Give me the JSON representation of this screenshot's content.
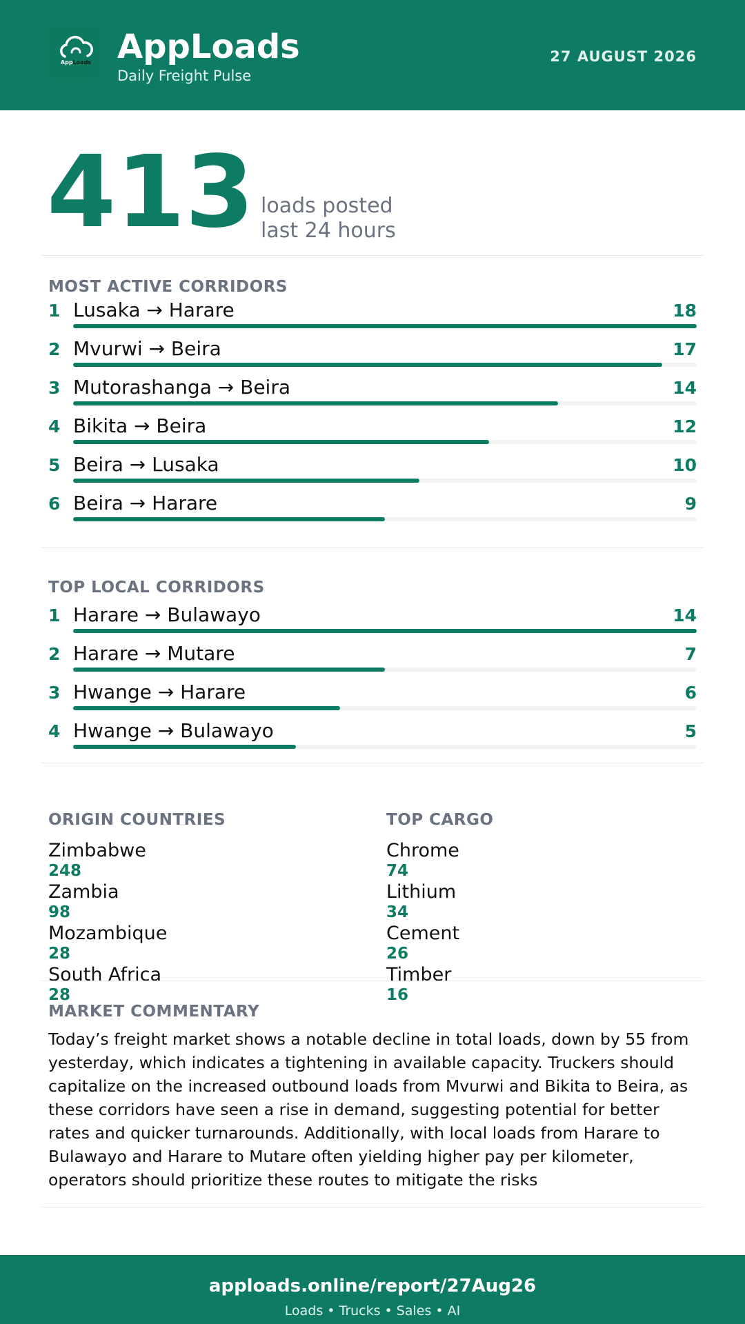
{
  "header": {
    "logo_text_a": "App",
    "logo_text_b": "Loads",
    "title": "AppLoads",
    "subtitle": "Daily Freight Pulse",
    "date": "27 AUGUST 2026"
  },
  "hero": {
    "value": "413",
    "line1": "loads posted",
    "line2": "last 24 hours"
  },
  "active_corridors": {
    "title": "MOST ACTIVE CORRIDORS",
    "items": [
      {
        "rank": "1",
        "name": "Lusaka → Harare",
        "count": 18
      },
      {
        "rank": "2",
        "name": "Mvurwi → Beira",
        "count": 17
      },
      {
        "rank": "3",
        "name": "Mutorashanga → Beira",
        "count": 14
      },
      {
        "rank": "4",
        "name": "Bikita → Beira",
        "count": 12
      },
      {
        "rank": "5",
        "name": "Beira → Lusaka",
        "count": 10
      },
      {
        "rank": "6",
        "name": "Beira → Harare",
        "count": 9
      }
    ]
  },
  "local_corridors": {
    "title": "TOP LOCAL CORRIDORS",
    "items": [
      {
        "rank": "1",
        "name": "Harare → Bulawayo",
        "count": 14
      },
      {
        "rank": "2",
        "name": "Harare → Mutare",
        "count": 7
      },
      {
        "rank": "3",
        "name": "Hwange → Harare",
        "count": 6
      },
      {
        "rank": "4",
        "name": "Hwange → Bulawayo",
        "count": 5
      }
    ]
  },
  "origin_countries": {
    "title": "ORIGIN COUNTRIES",
    "items": [
      {
        "name": "Zimbabwe",
        "value": "248"
      },
      {
        "name": "Zambia",
        "value": "98"
      },
      {
        "name": "Mozambique",
        "value": "28"
      },
      {
        "name": "South Africa",
        "value": "28"
      }
    ]
  },
  "top_cargo": {
    "title": "TOP CARGO",
    "items": [
      {
        "name": "Chrome",
        "value": "74"
      },
      {
        "name": "Lithium",
        "value": "34"
      },
      {
        "name": "Cement",
        "value": "26"
      },
      {
        "name": "Timber",
        "value": "16"
      }
    ]
  },
  "commentary": {
    "title": "MARKET COMMENTARY",
    "text": "Today’s freight market shows a notable decline in total loads, down by 55 from yesterday, which indicates a tightening in available capacity. Truckers should capitalize on the increased outbound loads from Mvurwi and Bikita to Beira, as these corridors have seen a rise in demand, suggesting potential for better rates and quicker turnarounds. Additionally, with local loads from Harare to Bulawayo and Harare to Mutare often yielding higher pay per kilometer, operators should prioritize these routes to mitigate the risks"
  },
  "footer": {
    "url": "apploads.online/report/27Aug26",
    "tagline": "Loads • Trucks • Sales • AI"
  },
  "colors": {
    "brand": "#0e7c64",
    "muted": "#6b7280",
    "track": "#f2f2f2"
  }
}
